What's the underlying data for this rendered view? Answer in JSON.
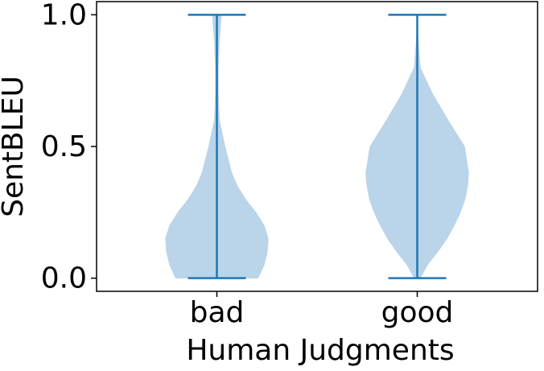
{
  "chart_data": {
    "type": "violin",
    "x_label": "Human Judgments",
    "y_label": "SentBLEU",
    "categories": [
      "bad",
      "good"
    ],
    "kde_y": [
      0,
      0.05,
      0.1,
      0.15,
      0.2,
      0.25,
      0.3,
      0.35,
      0.4,
      0.5,
      0.6,
      0.7,
      0.8,
      0.9,
      1.0
    ],
    "series": [
      {
        "name": "bad",
        "min": 0,
        "max": 1.0,
        "density": [
          0.8,
          0.92,
          0.98,
          1.0,
          0.92,
          0.76,
          0.56,
          0.4,
          0.29,
          0.16,
          0.05,
          0.03,
          0.03,
          0.05,
          0.09
        ]
      },
      {
        "name": "good",
        "min": 0,
        "max": 1.0,
        "density": [
          0.06,
          0.2,
          0.4,
          0.58,
          0.72,
          0.84,
          0.93,
          0.98,
          1.0,
          0.92,
          0.6,
          0.3,
          0.06,
          0.02,
          0.0
        ]
      }
    ],
    "body_color": "#bad4e9",
    "line_color": "#1f77b4",
    "ylim": [
      -0.05,
      1.05
    ],
    "yticks": [
      {
        "value": 0,
        "label": "0.0"
      },
      {
        "value": 0.5,
        "label": "0.5"
      },
      {
        "value": 1.0,
        "label": "1.0"
      }
    ]
  }
}
